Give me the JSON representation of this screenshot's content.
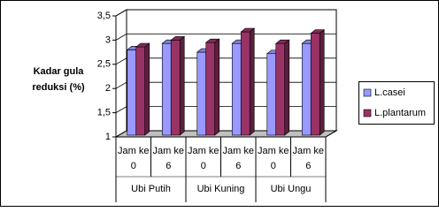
{
  "chart_data": {
    "type": "bar3d",
    "y_label": "Kadar gula reduksi (%)",
    "categories": [
      "Jam ke 0",
      "Jam ke 6",
      "Jam ke 0",
      "Jam ke 6",
      "Jam ke 0",
      "Jam ke 6"
    ],
    "groups": [
      "Ubi Putih",
      "Ubi Kuning",
      "Ubi Ungu"
    ],
    "series": [
      {
        "name": "L.casei",
        "color": "#9999ff",
        "values": [
          2.8,
          2.93,
          2.75,
          2.93,
          2.72,
          2.93
        ]
      },
      {
        "name": "L.plantarum",
        "color": "#993366",
        "values": [
          2.86,
          3.0,
          2.95,
          3.17,
          2.93,
          3.14
        ]
      }
    ],
    "ylim": [
      1,
      3.5
    ],
    "yticks": [
      1,
      {
        "value": 1.5,
        "label": "1,5"
      },
      2,
      {
        "value": 2.5,
        "label": "2,5"
      },
      3,
      {
        "value": 3.5,
        "label": "3,5"
      }
    ],
    "grid": true
  }
}
